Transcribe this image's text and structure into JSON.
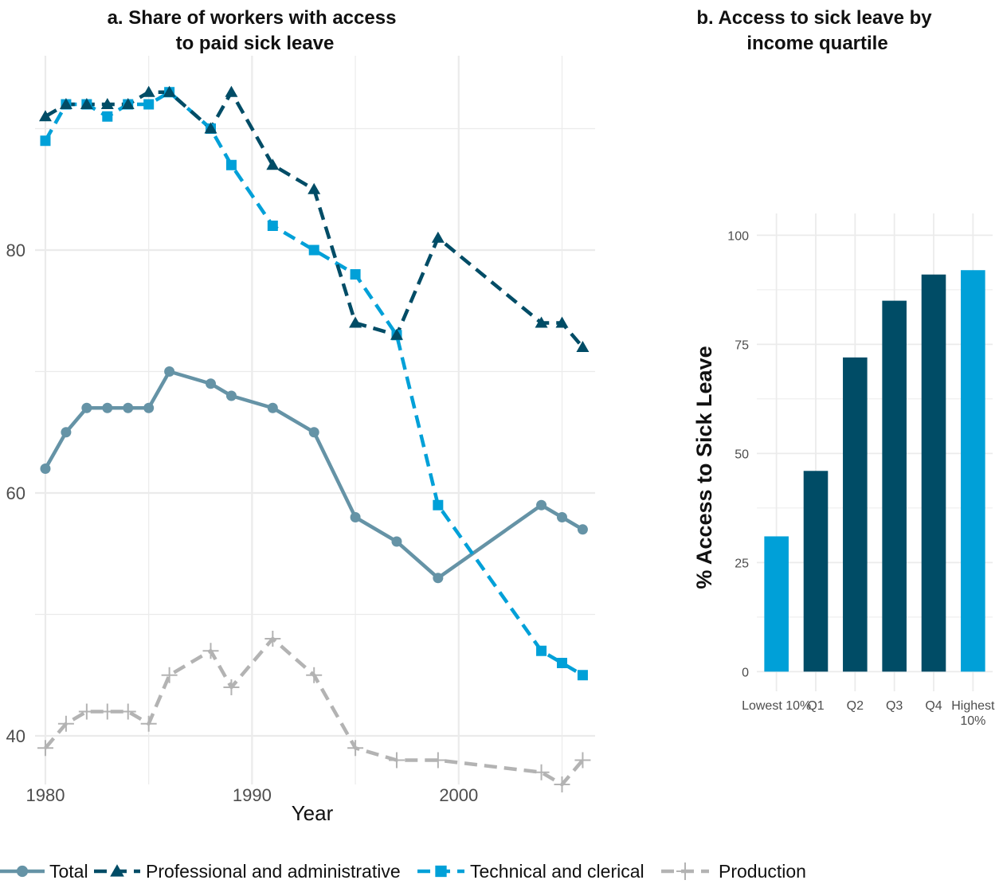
{
  "colors": {
    "total": "#6593A6",
    "professional": "#004C66",
    "technical": "#00A0D8",
    "production": "#B3B3B3",
    "bar_dark": "#004C66",
    "bar_light": "#00A0D8",
    "grid": "#EBEBEB"
  },
  "chart_data": [
    {
      "type": "line",
      "title": "a. Share of workers with access to paid sick leave",
      "title_lines": [
        "a. Share of workers with access",
        "to paid sick leave"
      ],
      "xlabel": "Year",
      "ylabel": "",
      "xlim": [
        1979.5,
        2006.6
      ],
      "ylim": [
        36,
        96
      ],
      "xticks": [
        1980,
        1990,
        2000
      ],
      "yticks": [
        40,
        60,
        80
      ],
      "grid": true,
      "legend": "bottom",
      "series": [
        {
          "name": "Total",
          "key": "total",
          "line": "solid",
          "marker": "circle",
          "x": [
            1980,
            1981,
            1982,
            1983,
            1984,
            1985,
            1986,
            1988,
            1989,
            1991,
            1993,
            1995,
            1997,
            1999,
            2004,
            2005,
            2006
          ],
          "y": [
            62,
            65,
            67,
            67,
            67,
            67,
            70,
            69,
            68,
            67,
            65,
            58,
            56,
            53,
            59,
            58,
            57
          ]
        },
        {
          "name": "Professional and administrative",
          "key": "professional",
          "line": "dashed",
          "marker": "triangle",
          "x": [
            1980,
            1981,
            1982,
            1983,
            1984,
            1985,
            1986,
            1988,
            1989,
            1991,
            1993,
            1995,
            1997,
            1999,
            2004,
            2005,
            2006
          ],
          "y": [
            91,
            92,
            92,
            92,
            92,
            93,
            93,
            90,
            93,
            87,
            85,
            74,
            73,
            81,
            74,
            74,
            72
          ]
        },
        {
          "name": "Technical and clerical",
          "key": "technical",
          "line": "dashed",
          "marker": "square",
          "x": [
            1980,
            1981,
            1982,
            1983,
            1984,
            1985,
            1986,
            1988,
            1989,
            1991,
            1993,
            1995,
            1997,
            1999,
            2004,
            2005,
            2006
          ],
          "y": [
            89,
            92,
            92,
            91,
            92,
            92,
            93,
            90,
            87,
            82,
            80,
            78,
            73,
            59,
            47,
            46,
            45
          ]
        },
        {
          "name": "Production",
          "key": "production",
          "line": "dashed",
          "marker": "plus",
          "x": [
            1980,
            1981,
            1982,
            1983,
            1984,
            1985,
            1986,
            1988,
            1989,
            1991,
            1993,
            1995,
            1997,
            1999,
            2004,
            2005,
            2006
          ],
          "y": [
            39,
            41,
            42,
            42,
            42,
            41,
            45,
            47,
            44,
            48,
            45,
            39,
            38,
            38,
            37,
            36,
            38
          ]
        }
      ]
    },
    {
      "type": "bar",
      "title": "b. Access to sick leave by income quartile",
      "title_lines": [
        "b.  Access to sick leave by",
        "income quartile"
      ],
      "xlabel": "",
      "ylabel": "% Access to Sick Leave",
      "ylim": [
        -4.5,
        105
      ],
      "yticks": [
        0,
        25,
        50,
        75,
        100
      ],
      "grid": true,
      "categories": [
        "Lowest 10%",
        "Q1",
        "Q2",
        "Q3",
        "Q4",
        "Highest 10%"
      ],
      "category_lines": [
        [
          "Lowest 10%"
        ],
        [
          "Q1"
        ],
        [
          "Q2"
        ],
        [
          "Q3"
        ],
        [
          "Q4"
        ],
        [
          "Highest",
          "10%"
        ]
      ],
      "values": [
        31,
        46,
        72,
        85,
        91,
        92
      ],
      "bar_colors": [
        "bar_light",
        "bar_dark",
        "bar_dark",
        "bar_dark",
        "bar_dark",
        "bar_light"
      ]
    }
  ]
}
